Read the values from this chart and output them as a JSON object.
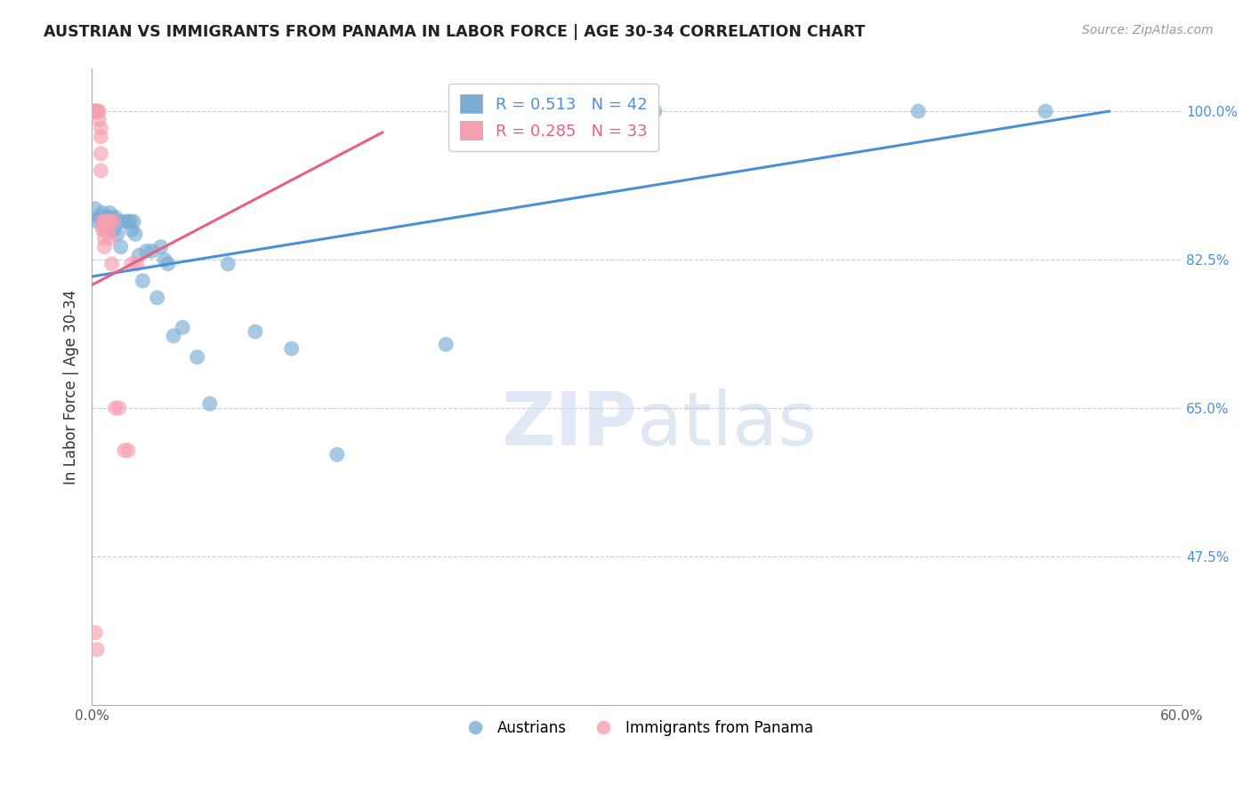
{
  "title": "AUSTRIAN VS IMMIGRANTS FROM PANAMA IN LABOR FORCE | AGE 30-34 CORRELATION CHART",
  "source": "Source: ZipAtlas.com",
  "ylabel": "In Labor Force | Age 30-34",
  "xlim": [
    0.0,
    0.6
  ],
  "ylim": [
    0.3,
    1.05
  ],
  "x_tick_positions": [
    0.0,
    0.1,
    0.2,
    0.3,
    0.4,
    0.5,
    0.6
  ],
  "x_tick_labels": [
    "0.0%",
    "",
    "",
    "",
    "",
    "",
    "60.0%"
  ],
  "y_ticks": [
    0.475,
    0.65,
    0.825,
    1.0
  ],
  "y_tick_labels": [
    "47.5%",
    "65.0%",
    "82.5%",
    "100.0%"
  ],
  "grid_color": "#cccccc",
  "background_color": "#ffffff",
  "legend_R_blue": "0.513",
  "legend_N_blue": "42",
  "legend_R_pink": "0.285",
  "legend_N_pink": "33",
  "blue_color": "#7aadd4",
  "pink_color": "#f4a0b0",
  "blue_line_color": "#4a90d9",
  "pink_line_color": "#e86080",
  "blue_scatter_x": [
    0.002,
    0.003,
    0.004,
    0.005,
    0.006,
    0.007,
    0.007,
    0.008,
    0.009,
    0.01,
    0.011,
    0.012,
    0.013,
    0.014,
    0.015,
    0.016,
    0.018,
    0.02,
    0.021,
    0.022,
    0.023,
    0.024,
    0.026,
    0.028,
    0.03,
    0.033,
    0.036,
    0.038,
    0.04,
    0.042,
    0.045,
    0.05,
    0.058,
    0.065,
    0.075,
    0.09,
    0.11,
    0.135,
    0.195,
    0.31,
    0.455,
    0.525
  ],
  "blue_scatter_y": [
    0.885,
    0.87,
    0.875,
    0.875,
    0.88,
    0.875,
    0.87,
    0.875,
    0.875,
    0.88,
    0.875,
    0.86,
    0.875,
    0.855,
    0.87,
    0.84,
    0.87,
    0.87,
    0.87,
    0.86,
    0.87,
    0.855,
    0.83,
    0.8,
    0.835,
    0.835,
    0.78,
    0.84,
    0.825,
    0.82,
    0.735,
    0.745,
    0.71,
    0.655,
    0.82,
    0.74,
    0.72,
    0.595,
    0.725,
    1.0,
    1.0,
    1.0
  ],
  "pink_scatter_x": [
    0.001,
    0.002,
    0.002,
    0.003,
    0.003,
    0.004,
    0.004,
    0.005,
    0.005,
    0.005,
    0.005,
    0.006,
    0.006,
    0.007,
    0.007,
    0.007,
    0.007,
    0.008,
    0.008,
    0.009,
    0.009,
    0.01,
    0.01,
    0.011,
    0.012,
    0.013,
    0.015,
    0.018,
    0.02,
    0.022,
    0.025,
    0.002,
    0.003
  ],
  "pink_scatter_y": [
    1.0,
    1.0,
    1.0,
    1.0,
    1.0,
    1.0,
    0.99,
    0.98,
    0.97,
    0.95,
    0.93,
    0.87,
    0.86,
    0.87,
    0.86,
    0.85,
    0.84,
    0.87,
    0.86,
    0.87,
    0.86,
    0.87,
    0.85,
    0.82,
    0.87,
    0.65,
    0.65,
    0.6,
    0.6,
    0.82,
    0.82,
    0.385,
    0.365
  ],
  "blue_line_x": [
    0.0,
    0.56
  ],
  "blue_line_y": [
    0.805,
    1.0
  ],
  "pink_line_x": [
    0.0,
    0.16
  ],
  "pink_line_y": [
    0.795,
    0.975
  ]
}
